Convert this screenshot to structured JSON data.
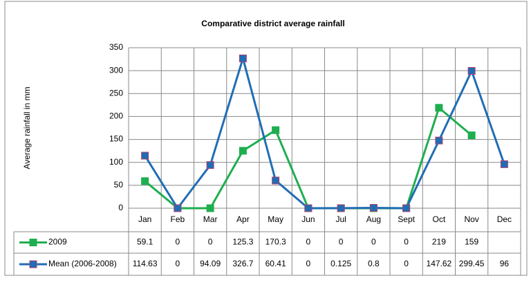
{
  "chart_data": {
    "type": "line",
    "title": "Comparative district average rainfall",
    "y_label": "Average rainfall in mm",
    "categories": [
      "Jan",
      "Feb",
      "Mar",
      "Apr",
      "May",
      "Jun",
      "Jul",
      "Aug",
      "Sept",
      "Oct",
      "Nov",
      "Dec"
    ],
    "series": [
      {
        "name": "2009",
        "color": "#1fae4f",
        "values": [
          59.1,
          0,
          0,
          125.3,
          170.3,
          0,
          0,
          0,
          0,
          219,
          159,
          null
        ]
      },
      {
        "name": "Mean (2006-2008)",
        "color": "#1f6db4",
        "values": [
          114.63,
          0,
          94.09,
          326.7,
          60.41,
          0,
          0.125,
          0.8,
          0,
          147.62,
          299.45,
          96
        ]
      }
    ],
    "ylim": [
      0,
      350
    ],
    "yticks": [
      0,
      50,
      100,
      150,
      200,
      250,
      300,
      350
    ],
    "grid": true,
    "data_table": true
  }
}
